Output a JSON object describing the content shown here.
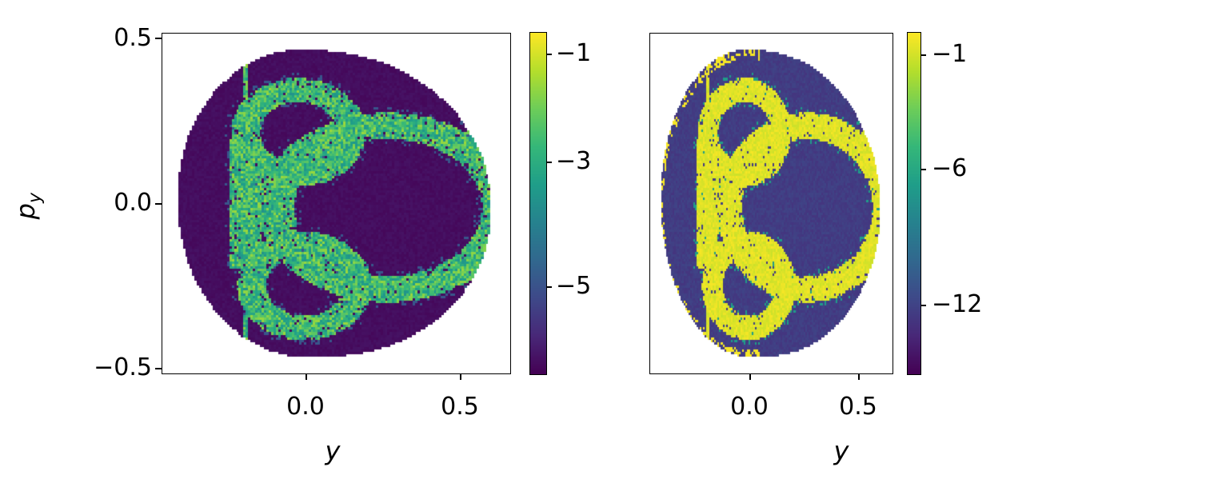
{
  "chart_data": [
    {
      "type": "heatmap",
      "title": "",
      "xlabel": "y",
      "ylabel": "p",
      "ylabel_sub": "y",
      "xlim": [
        -0.46,
        0.66
      ],
      "ylim": [
        -0.52,
        0.52
      ],
      "xticks": [
        0.0,
        0.5
      ],
      "xtick_labels": [
        "0.0",
        "0.5"
      ],
      "yticks": [
        0.5,
        0.0,
        -0.5
      ],
      "ytick_labels": [
        "0.5",
        "0.0",
        "−0.5"
      ],
      "colormap": "viridis",
      "colorbar": {
        "range": [
          -6.4,
          -0.65
        ],
        "ticks": [
          -1,
          -3,
          -5
        ],
        "tick_labels": [
          "−1",
          "−3",
          "−5"
        ]
      },
      "background_value": -6.2,
      "chaotic_band_value_range": [
        -3.5,
        -1.5
      ],
      "grid": false
    },
    {
      "type": "heatmap",
      "title": "",
      "xlabel": "y",
      "ylabel": "",
      "xlim": [
        -0.46,
        0.66
      ],
      "ylim": [
        -0.52,
        0.52
      ],
      "xticks": [
        0.0,
        0.5
      ],
      "xtick_labels": [
        "0.0",
        "0.5"
      ],
      "yticks": [],
      "colormap": "viridis",
      "colorbar": {
        "range": [
          -15,
          -0.05
        ],
        "ticks": [
          -1,
          -6,
          -12
        ],
        "tick_labels": [
          "−1",
          "−6",
          "−12"
        ]
      },
      "background_value": -12.3,
      "chaotic_band_value_range": [
        -1.2,
        -0.2
      ],
      "grid": false
    }
  ]
}
